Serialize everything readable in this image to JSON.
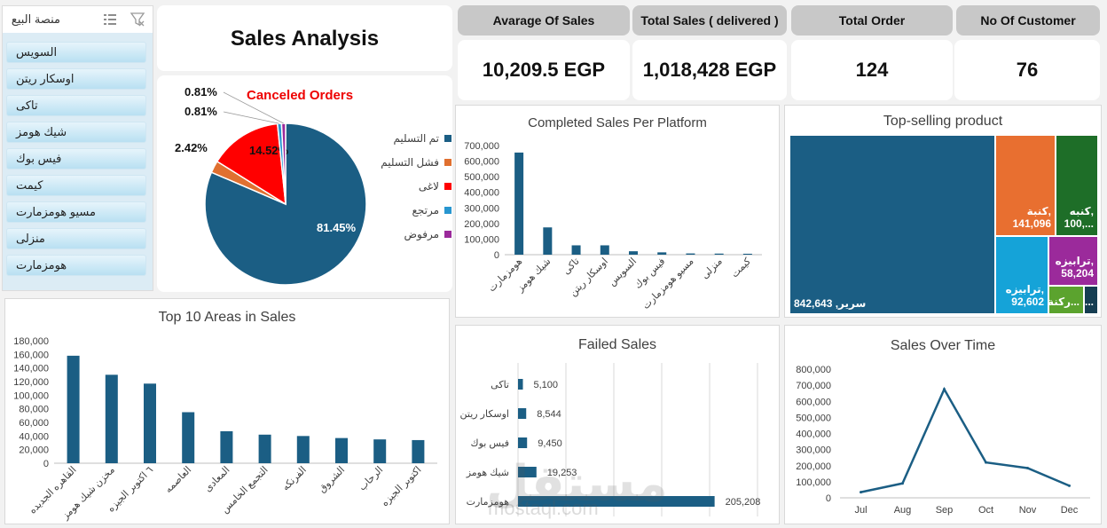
{
  "slicer": {
    "title": "منصة البيع",
    "items": [
      "السويس",
      "اوسكار ريتن",
      "تاكى",
      "شيك هومز",
      "فيس بوك",
      "كيمت",
      "مسيو هومزمارت",
      "منزلى",
      "هومزمارت"
    ]
  },
  "header": {
    "title": "Sales Analysis"
  },
  "kpis": [
    {
      "label": "Avarage Of  Sales",
      "value": "10,209.5  EGP"
    },
    {
      "label": "Total Sales ( delivered )",
      "value": "1,018,428 EGP"
    },
    {
      "label": "Total Order",
      "value": "124"
    },
    {
      "label": "No Of Customer",
      "value": "76"
    }
  ],
  "watermark": {
    "arabic": "مستقل",
    "latin": "mostaql.com"
  },
  "chart_data": [
    {
      "type": "pie",
      "title": "Canceled Orders",
      "labels": [
        "تم التسليم",
        "فشل التسليم",
        "لاغى",
        "مرتجع",
        "مرفوض"
      ],
      "values": [
        81.45,
        2.42,
        14.52,
        0.81,
        0.81
      ],
      "data_labels": [
        "81.45%",
        "2.42%",
        "14.52%",
        "0.81%",
        "0.81%"
      ],
      "colors": [
        "#1b5e84",
        "#e07030",
        "#ff0000",
        "#2896d0",
        "#9b2a9b"
      ],
      "legend": "right"
    },
    {
      "type": "bar",
      "title": "Completed Sales Per Platform",
      "categories": [
        "هومزمارت",
        "شيك هومز",
        "تاكى",
        "اوسكار ريتن",
        "السويس",
        "فيس بوك",
        "مسيو هومزمارت",
        "منزلى",
        "كيمت"
      ],
      "values": [
        655000,
        175000,
        60000,
        60000,
        22000,
        15000,
        8000,
        7000,
        6000
      ],
      "ylim": [
        0,
        700000
      ],
      "yticks": [
        "0",
        "100,000",
        "200,000",
        "300,000",
        "400,000",
        "500,000",
        "600,000",
        "700,000"
      ],
      "grid": false,
      "color": "#1b5e84"
    },
    {
      "type": "treemap",
      "title": "Top-selling product",
      "labels": [
        "سرير",
        "كنبة",
        "كنبه",
        "ترابيزه",
        "ترابيزه",
        "ركنة",
        "..."
      ],
      "display_labels": [
        "سرير, 842,643",
        "كنبة,",
        "كنبه,",
        "ترابيزه,",
        "ترابيزه,",
        "ركنة...",
        "ك..."
      ],
      "display_values": [
        "",
        "141,096",
        "100,...",
        "92,602",
        "58,204",
        "",
        ""
      ],
      "values": [
        842643,
        141096,
        100000,
        92602,
        58204,
        25000,
        15000
      ],
      "colors": [
        "#1b5e84",
        "#e86f30",
        "#1e6e28",
        "#15a3d8",
        "#9b2a9b",
        "#5ba32e",
        "#163e52"
      ]
    },
    {
      "type": "bar",
      "title": "Top 10 Areas in Sales",
      "categories": [
        "القاهره الجديده",
        "مخزن شيك هومز",
        "٦ اكتوبر الجيزه",
        "العاصمه",
        "المعادى",
        "التجمع الخامس",
        "الفرنكه",
        "الشروق",
        "الرحاب",
        "اكتوبر الجيزه"
      ],
      "values": [
        158000,
        130000,
        117000,
        75000,
        47000,
        42000,
        40000,
        37000,
        35000,
        34000
      ],
      "ylim": [
        0,
        180000
      ],
      "yticks": [
        "0",
        "20,000",
        "40,000",
        "60,000",
        "80,000",
        "100,000",
        "120,000",
        "140,000",
        "160,000",
        "180,000"
      ],
      "grid": false,
      "color": "#1b5e84"
    },
    {
      "type": "bar",
      "orientation": "horizontal",
      "title": "Failed Sales",
      "categories": [
        "تاكى",
        "اوسكار ريتن",
        "فيس بوك",
        "شيك هومز",
        "هومزمارت"
      ],
      "values": [
        5100,
        8544,
        9450,
        19253,
        205208
      ],
      "data_labels": [
        "5,100",
        "8,544",
        "9,450",
        "19,253",
        "205,208"
      ],
      "grid": true,
      "color": "#1b5e84"
    },
    {
      "type": "line",
      "title": "Sales  Over Time",
      "x": [
        "Jul",
        "Aug",
        "Sep",
        "Oct",
        "Nov",
        "Dec"
      ],
      "values": [
        35000,
        90000,
        675000,
        220000,
        185000,
        75000
      ],
      "ylim": [
        0,
        800000
      ],
      "yticks": [
        "0",
        "100,000",
        "200,000",
        "300,000",
        "400,000",
        "500,000",
        "600,000",
        "700,000",
        "800,000"
      ],
      "grid": false,
      "color": "#1b5e84"
    }
  ]
}
